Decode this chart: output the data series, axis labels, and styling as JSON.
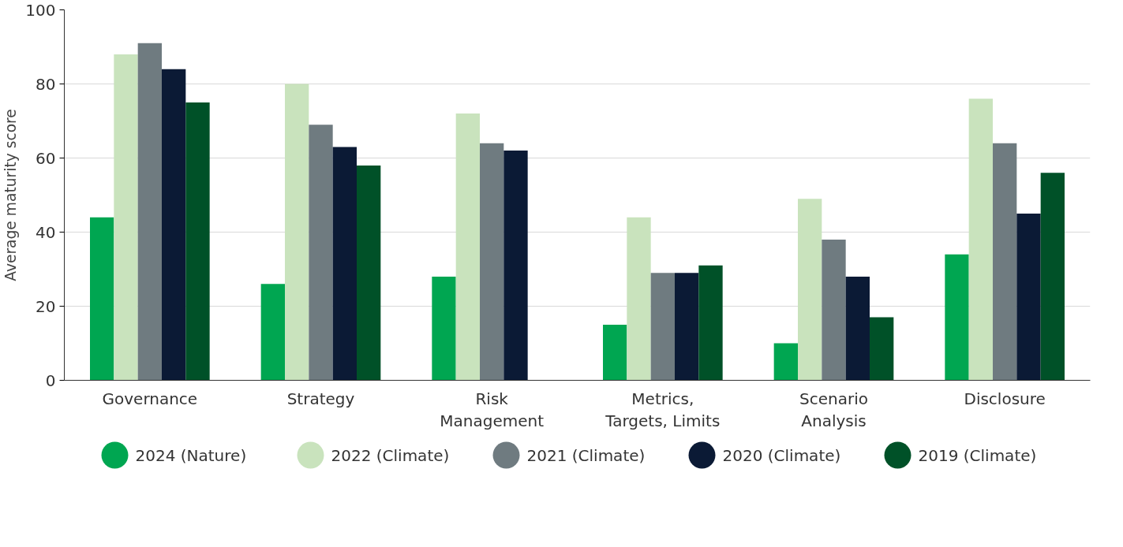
{
  "chart_data": {
    "type": "bar",
    "ylabel": "Average maturity score",
    "categories": [
      "Governance",
      "Strategy",
      "Risk Management",
      "Metrics, Targets, Limits",
      "Scenario Analysis",
      "Disclosure"
    ],
    "series": [
      {
        "name": "2024 (Nature)",
        "color": "#00a651",
        "values": [
          44,
          26,
          28,
          15,
          10,
          34
        ]
      },
      {
        "name": "2022 (Climate)",
        "color": "#c9e3bd",
        "values": [
          88,
          80,
          72,
          44,
          49,
          76
        ]
      },
      {
        "name": "2021 (Climate)",
        "color": "#6f7b80",
        "values": [
          91,
          69,
          64,
          29,
          38,
          64
        ]
      },
      {
        "name": "2020 (Climate)",
        "color": "#0b1a35",
        "values": [
          84,
          63,
          62,
          29,
          28,
          45
        ]
      },
      {
        "name": "2019 (Climate)",
        "color": "#005128",
        "values": [
          75,
          58,
          null,
          31,
          17,
          56
        ]
      }
    ],
    "ylim": [
      0,
      100
    ],
    "yticks": [
      0,
      20,
      40,
      60,
      80,
      100
    ],
    "grid": "y",
    "legend": "bottom",
    "marker": "circle"
  }
}
